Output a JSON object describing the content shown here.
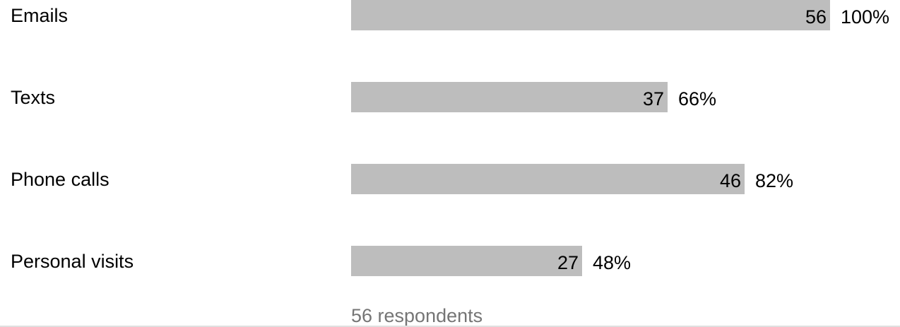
{
  "chart_data": {
    "type": "bar",
    "orientation": "horizontal",
    "categories": [
      "Emails",
      "Texts",
      "Phone calls",
      "Personal visits"
    ],
    "values": [
      56,
      37,
      46,
      27
    ],
    "percent_labels": [
      "100%",
      "66%",
      "82%",
      "48%"
    ],
    "xlim": [
      0,
      56
    ],
    "grid": false,
    "bar_color": "#bdbdbd"
  },
  "footer": {
    "respondents": "56 respondents"
  }
}
